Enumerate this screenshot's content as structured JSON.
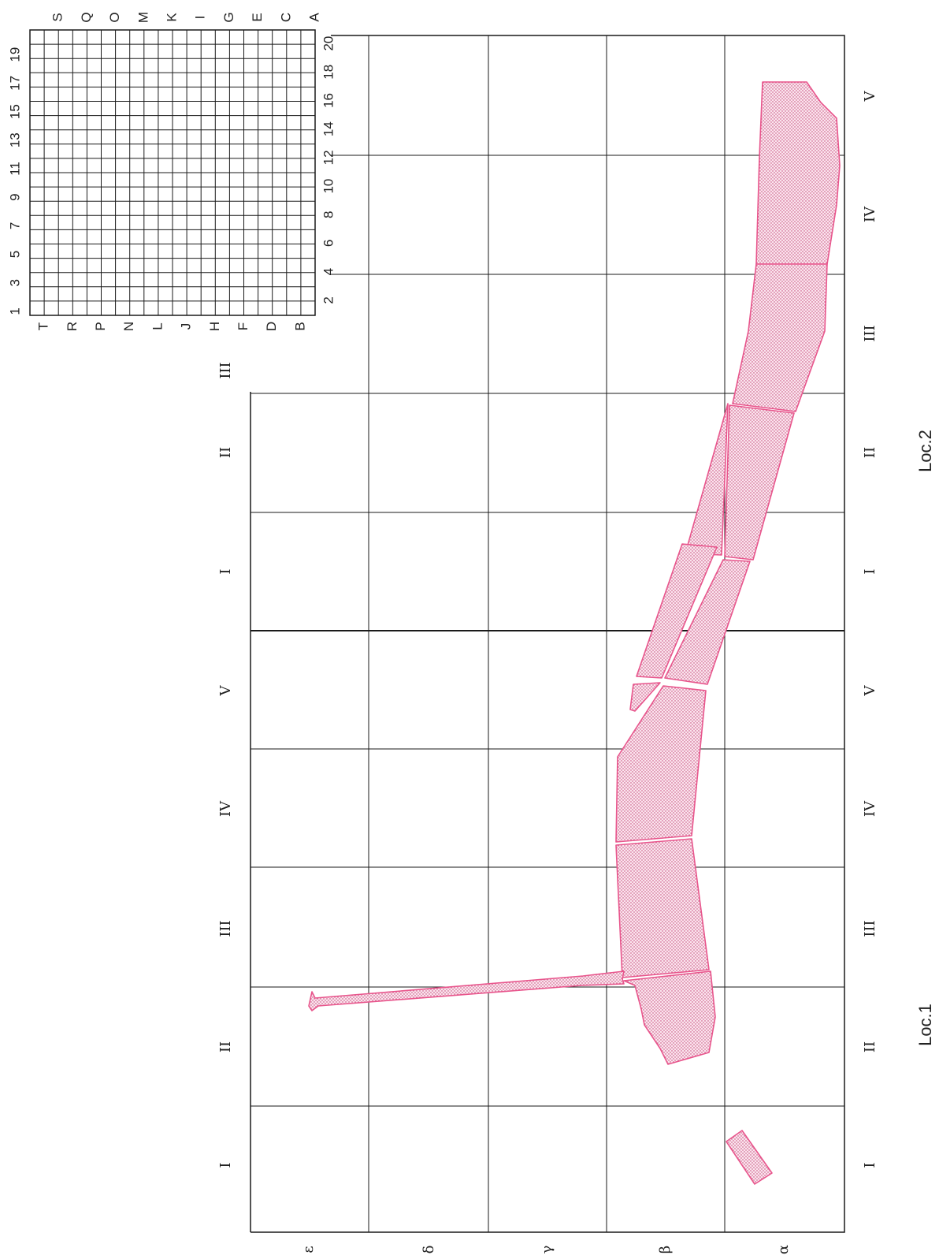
{
  "section_labels": [
    "I",
    "II",
    "III",
    "IV",
    "V",
    "I",
    "II",
    "III"
  ],
  "section_labels_bottom": [
    "I",
    "II",
    "III",
    "IV",
    "V",
    "I",
    "II",
    "III",
    "IV",
    "V"
  ],
  "greek_labels": [
    "α",
    "β",
    "γ",
    "δ",
    "ε"
  ],
  "loc_labels": {
    "loc1": "Loc.1",
    "loc2": "Loc.2"
  },
  "key_grid": {
    "numbers_odd": [
      "1",
      "3",
      "5",
      "7",
      "9",
      "11",
      "13",
      "15",
      "17",
      "19"
    ],
    "numbers_even": [
      "2",
      "4",
      "6",
      "8",
      "10",
      "12",
      "14",
      "16",
      "18",
      "20"
    ],
    "letters_left": [
      "T",
      "R",
      "P",
      "N",
      "L",
      "J",
      "H",
      "F",
      "D",
      "B"
    ],
    "letters_right": [
      "S",
      "Q",
      "O",
      "M",
      "K",
      "I",
      "G",
      "E",
      "C",
      "A"
    ]
  },
  "colors": {
    "outline": "#e8558c",
    "dots": "#c04070",
    "grid": "#1a1a1a"
  }
}
